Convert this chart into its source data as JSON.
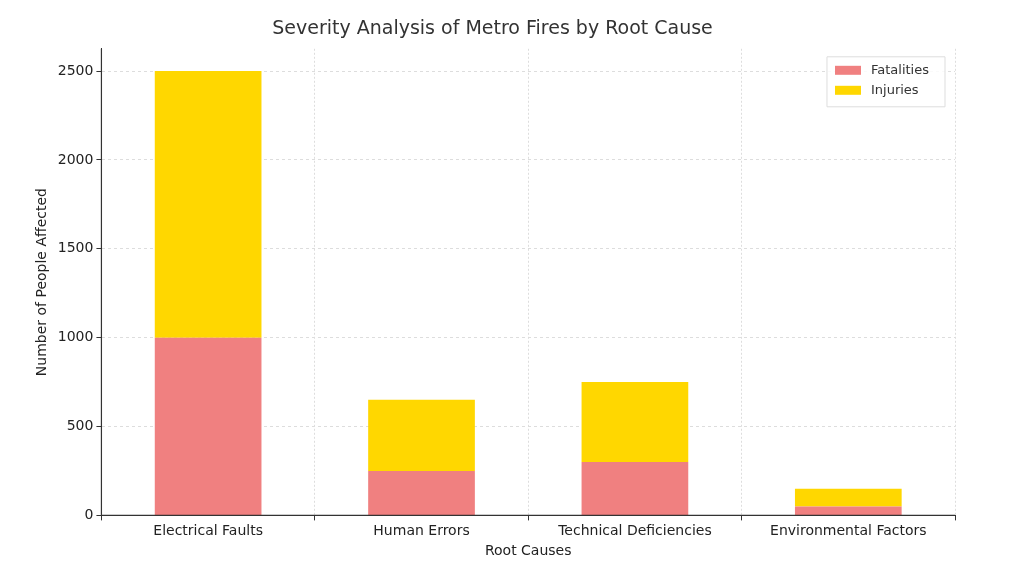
{
  "chart_data": {
    "type": "bar",
    "title": "Severity Analysis of Metro Fires by Root Cause",
    "xlabel": "Root Causes",
    "ylabel": "Number of People Affected",
    "categories": [
      "Electrical Faults",
      "Human Errors",
      "Technical Deficiencies",
      "Environmental Factors"
    ],
    "series": [
      {
        "name": "Fatalities",
        "color": "#f08080",
        "values": [
          1000,
          250,
          300,
          50
        ]
      },
      {
        "name": "Injuries",
        "color": "#ffd700",
        "values": [
          1500,
          400,
          450,
          100
        ]
      }
    ],
    "stacked": true,
    "ylim": [
      0,
      2625
    ],
    "yticks": [
      0,
      500,
      1000,
      1500,
      2000,
      2500
    ],
    "grid": true,
    "legend": "top right"
  }
}
